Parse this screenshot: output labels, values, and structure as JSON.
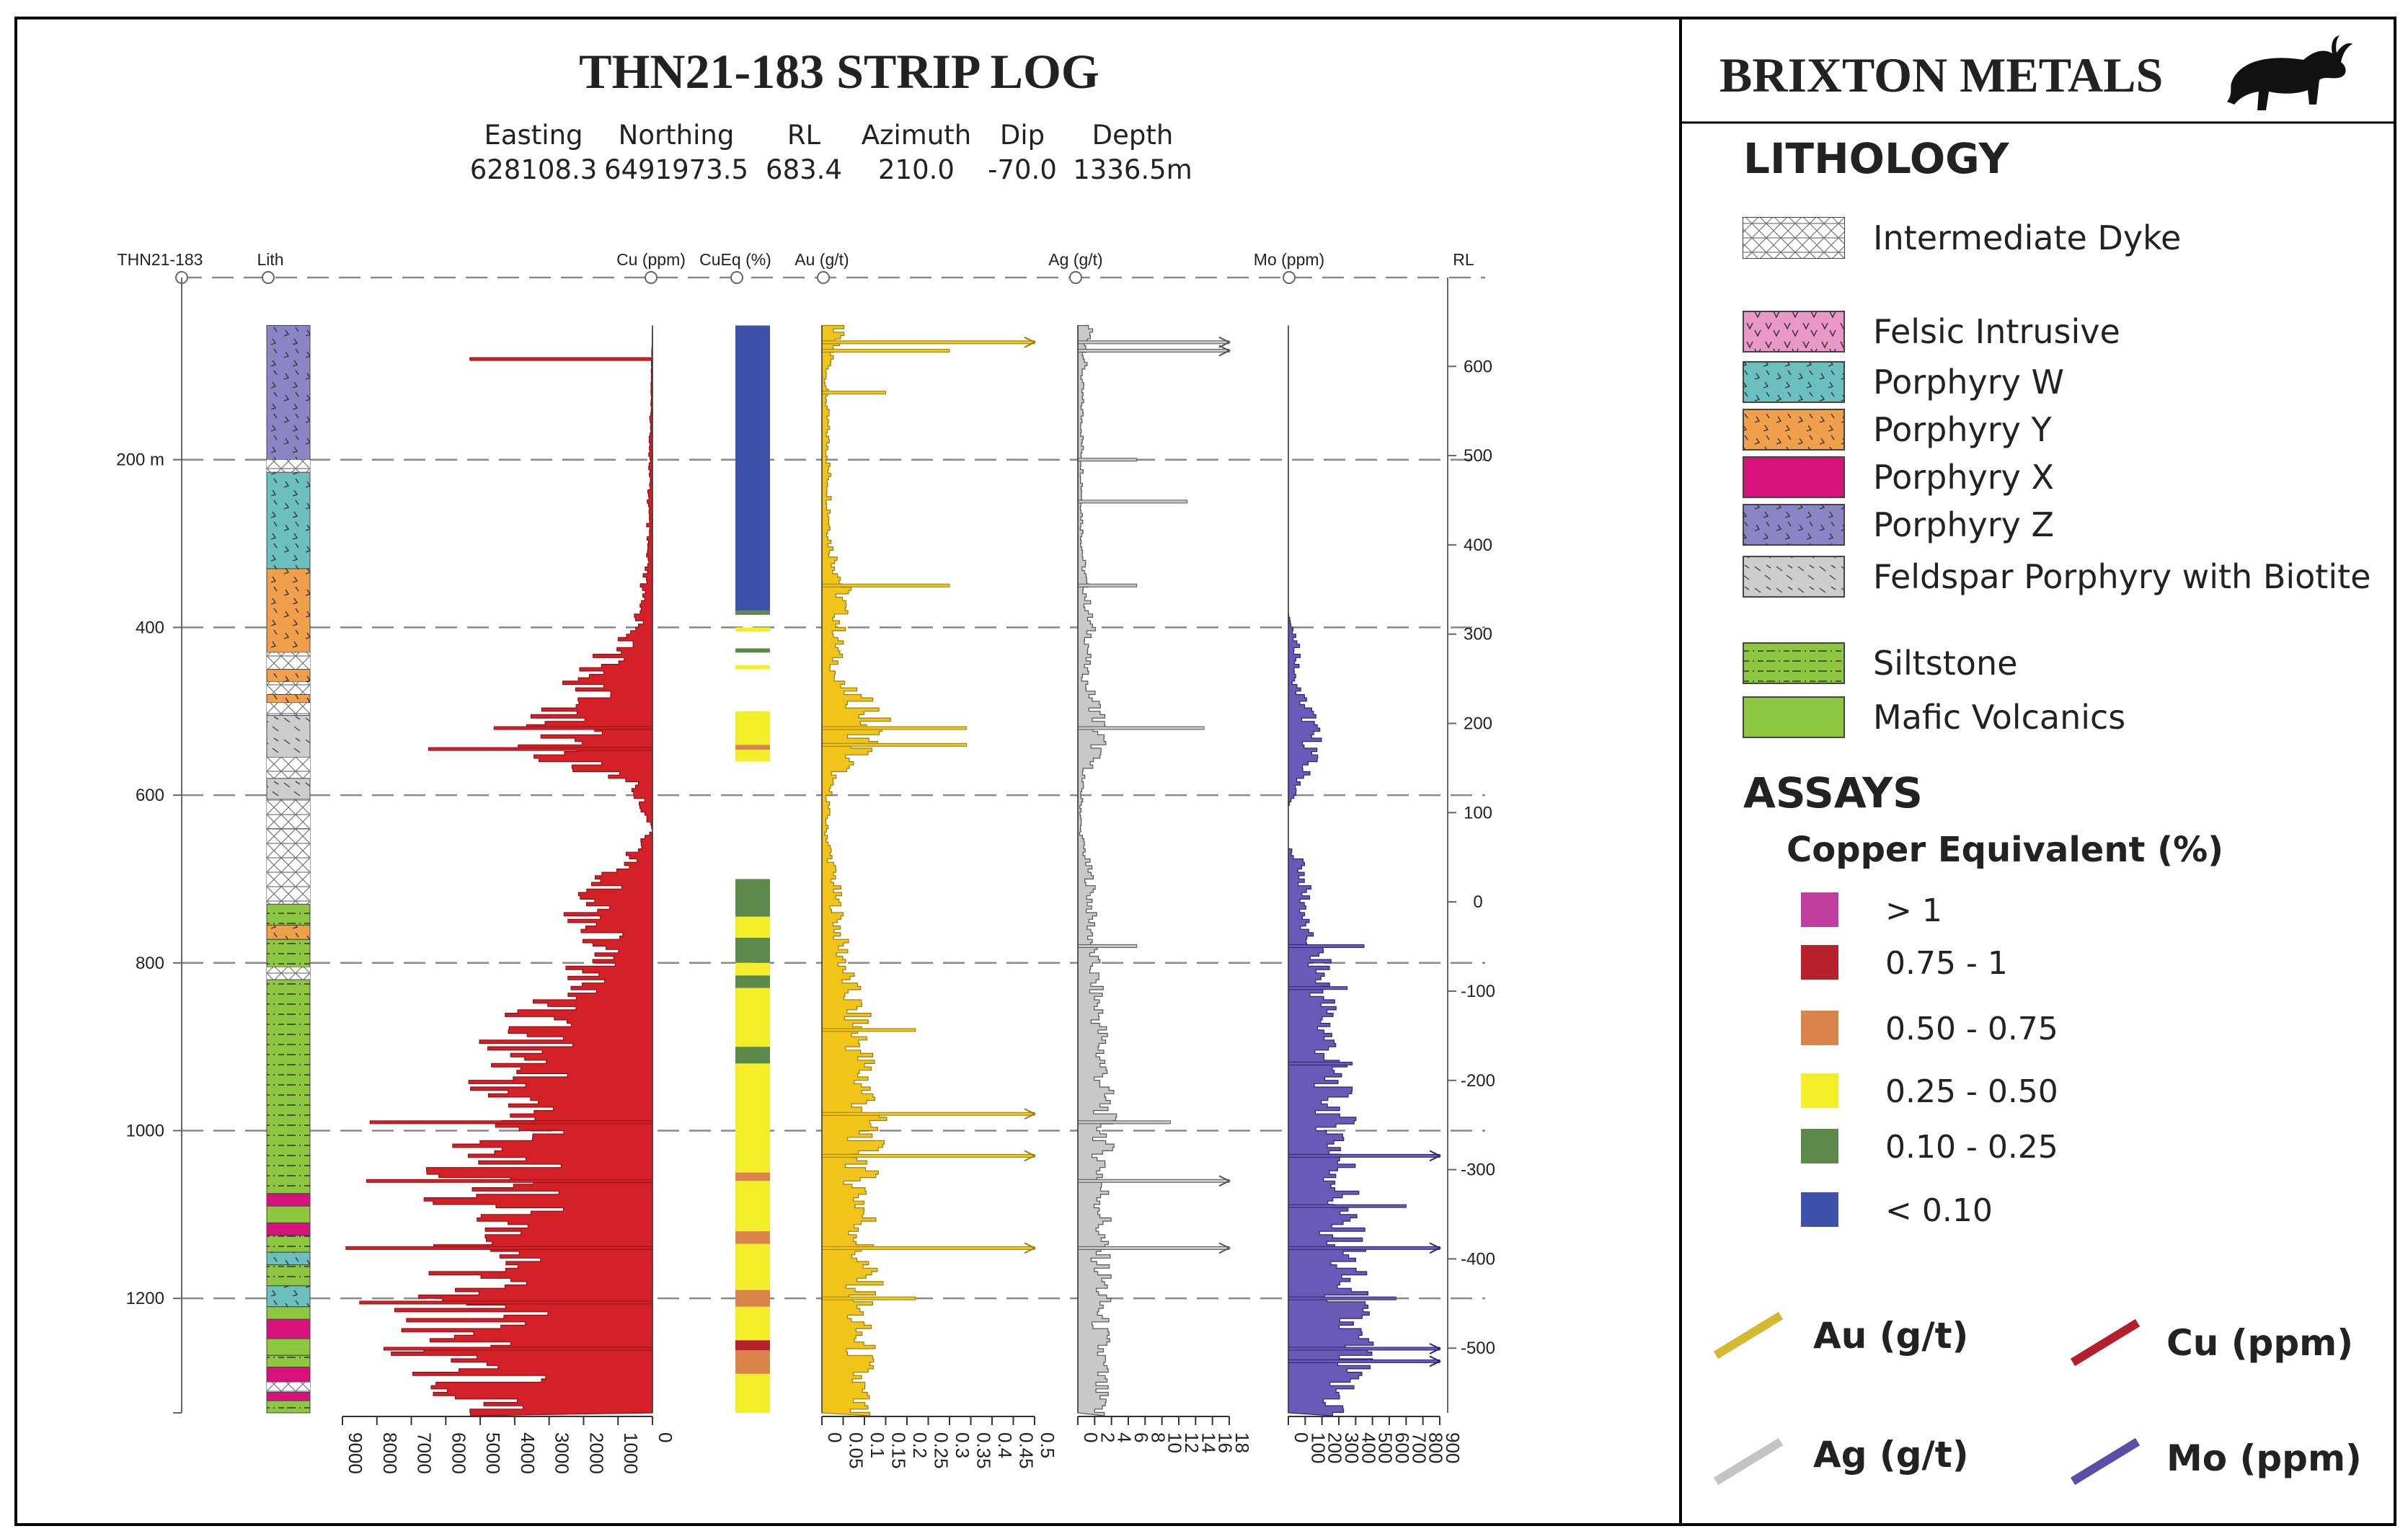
{
  "chart_data": {
    "type": "strip-log",
    "title": "THN21-183 STRIP LOG",
    "hole_id": "THN21-183",
    "collar": {
      "labels": [
        "Easting",
        "Northing",
        "RL",
        "Azimuth",
        "Dip",
        "Depth"
      ],
      "values": [
        "628108.3",
        "6491973.5",
        "683.4",
        "210.0",
        "-70.0",
        "1336.5m"
      ]
    },
    "depth_axis": {
      "range": [
        0,
        1336.5
      ],
      "ticks": [
        {
          "depth": 200,
          "label": "200 m"
        },
        {
          "depth": 400,
          "label": "400"
        },
        {
          "depth": 600,
          "label": "600"
        },
        {
          "depth": 800,
          "label": "800"
        },
        {
          "depth": 1000,
          "label": "1000"
        },
        {
          "depth": 1200,
          "label": "1200"
        }
      ]
    },
    "rl_axis": {
      "label": "RL",
      "ticks": [
        "600",
        "500",
        "400",
        "300",
        "200",
        "100",
        "0",
        "-100",
        "-200",
        "-300",
        "-400",
        "-500"
      ],
      "tick_values": [
        600,
        500,
        400,
        300,
        200,
        100,
        0,
        -100,
        -200,
        -300,
        -400,
        -500
      ]
    },
    "lith_header": "Lith",
    "lithology_intervals": [
      {
        "from": 40,
        "to": 200,
        "unit": "Porphyry Z"
      },
      {
        "from": 200,
        "to": 215,
        "unit": "Intermediate Dyke"
      },
      {
        "from": 215,
        "to": 330,
        "unit": "Porphyry W"
      },
      {
        "from": 330,
        "to": 430,
        "unit": "Porphyry Y"
      },
      {
        "from": 430,
        "to": 450,
        "unit": "Intermediate Dyke"
      },
      {
        "from": 450,
        "to": 465,
        "unit": "Porphyry Y"
      },
      {
        "from": 465,
        "to": 480,
        "unit": "Intermediate Dyke"
      },
      {
        "from": 480,
        "to": 490,
        "unit": "Porphyry Y"
      },
      {
        "from": 490,
        "to": 505,
        "unit": "Intermediate Dyke"
      },
      {
        "from": 505,
        "to": 555,
        "unit": "Feldspar Porphyry with Biotite"
      },
      {
        "from": 555,
        "to": 580,
        "unit": "Intermediate Dyke"
      },
      {
        "from": 580,
        "to": 605,
        "unit": "Feldspar Porphyry with Biotite"
      },
      {
        "from": 605,
        "to": 640,
        "unit": "Intermediate Dyke"
      },
      {
        "from": 640,
        "to": 730,
        "unit": "Intermediate Dyke"
      },
      {
        "from": 730,
        "to": 755,
        "unit": "Siltstone"
      },
      {
        "from": 755,
        "to": 772,
        "unit": "Porphyry Y"
      },
      {
        "from": 772,
        "to": 805,
        "unit": "Siltstone"
      },
      {
        "from": 805,
        "to": 820,
        "unit": "Intermediate Dyke"
      },
      {
        "from": 820,
        "to": 1075,
        "unit": "Siltstone"
      },
      {
        "from": 1075,
        "to": 1090,
        "unit": "Porphyry X"
      },
      {
        "from": 1090,
        "to": 1110,
        "unit": "Mafic Volcanics"
      },
      {
        "from": 1110,
        "to": 1125,
        "unit": "Porphyry X"
      },
      {
        "from": 1125,
        "to": 1145,
        "unit": "Siltstone"
      },
      {
        "from": 1145,
        "to": 1160,
        "unit": "Porphyry W"
      },
      {
        "from": 1160,
        "to": 1185,
        "unit": "Siltstone"
      },
      {
        "from": 1185,
        "to": 1210,
        "unit": "Porphyry W"
      },
      {
        "from": 1210,
        "to": 1225,
        "unit": "Mafic Volcanics"
      },
      {
        "from": 1225,
        "to": 1248,
        "unit": "Porphyry X"
      },
      {
        "from": 1248,
        "to": 1268,
        "unit": "Mafic Volcanics"
      },
      {
        "from": 1268,
        "to": 1282,
        "unit": "Siltstone"
      },
      {
        "from": 1282,
        "to": 1300,
        "unit": "Porphyry X"
      },
      {
        "from": 1300,
        "to": 1312,
        "unit": "Intermediate Dyke"
      },
      {
        "from": 1312,
        "to": 1322,
        "unit": "Porphyry X"
      },
      {
        "from": 1322,
        "to": 1336.5,
        "unit": "Siltstone"
      }
    ],
    "cu": {
      "label": "Cu (ppm)",
      "range": [
        0,
        9000
      ],
      "ticks": [
        "0",
        "1000",
        "2000",
        "3000",
        "4000",
        "5000",
        "6000",
        "7000",
        "8000",
        "9000"
      ],
      "tick_values": [
        0,
        1000,
        2000,
        3000,
        4000,
        5000,
        6000,
        7000,
        8000,
        9000
      ],
      "profile": [
        [
          40,
          0
        ],
        [
          200,
          80
        ],
        [
          300,
          150
        ],
        [
          330,
          200
        ],
        [
          360,
          350
        ],
        [
          400,
          400
        ],
        [
          430,
          1200
        ],
        [
          460,
          1800
        ],
        [
          500,
          2400
        ],
        [
          540,
          2800
        ],
        [
          560,
          2600
        ],
        [
          580,
          600
        ],
        [
          640,
          0
        ],
        [
          680,
          800
        ],
        [
          700,
          1500
        ],
        [
          740,
          1800
        ],
        [
          780,
          1400
        ],
        [
          820,
          2000
        ],
        [
          860,
          3000
        ],
        [
          900,
          3600
        ],
        [
          940,
          4100
        ],
        [
          980,
          3700
        ],
        [
          1020,
          4200
        ],
        [
          1060,
          4800
        ],
        [
          1100,
          4500
        ],
        [
          1140,
          5000
        ],
        [
          1180,
          4800
        ],
        [
          1220,
          5300
        ],
        [
          1260,
          5500
        ],
        [
          1300,
          4700
        ],
        [
          1336.5,
          4400
        ]
      ],
      "spikes": [
        [
          80,
          5300
        ],
        [
          520,
          4600
        ],
        [
          545,
          6500
        ],
        [
          990,
          8200
        ],
        [
          1060,
          8300
        ],
        [
          1140,
          8900
        ],
        [
          1205,
          8500
        ],
        [
          1260,
          7800
        ]
      ]
    },
    "cueq": {
      "label": "CuEq (%)",
      "intervals": [
        {
          "from": 40,
          "to": 380,
          "class": "< 0.10"
        },
        {
          "from": 380,
          "to": 385,
          "class": "0.10 - 0.25"
        },
        {
          "from": 400,
          "to": 405,
          "class": "0.25 - 0.50"
        },
        {
          "from": 425,
          "to": 430,
          "class": "0.10 - 0.25"
        },
        {
          "from": 445,
          "to": 450,
          "class": "0.25 - 0.50"
        },
        {
          "from": 500,
          "to": 540,
          "class": "0.25 - 0.50"
        },
        {
          "from": 540,
          "to": 546,
          "class": "0.50 - 0.75"
        },
        {
          "from": 546,
          "to": 560,
          "class": "0.25 - 0.50"
        },
        {
          "from": 700,
          "to": 745,
          "class": "0.10 - 0.25"
        },
        {
          "from": 745,
          "to": 770,
          "class": "0.25 - 0.50"
        },
        {
          "from": 770,
          "to": 800,
          "class": "0.10 - 0.25"
        },
        {
          "from": 800,
          "to": 815,
          "class": "0.25 - 0.50"
        },
        {
          "from": 815,
          "to": 830,
          "class": "0.10 - 0.25"
        },
        {
          "from": 830,
          "to": 900,
          "class": "0.25 - 0.50"
        },
        {
          "from": 900,
          "to": 920,
          "class": "0.10 - 0.25"
        },
        {
          "from": 920,
          "to": 1050,
          "class": "0.25 - 0.50"
        },
        {
          "from": 1050,
          "to": 1060,
          "class": "0.50 - 0.75"
        },
        {
          "from": 1060,
          "to": 1120,
          "class": "0.25 - 0.50"
        },
        {
          "from": 1120,
          "to": 1135,
          "class": "0.50 - 0.75"
        },
        {
          "from": 1135,
          "to": 1190,
          "class": "0.25 - 0.50"
        },
        {
          "from": 1190,
          "to": 1210,
          "class": "0.50 - 0.75"
        },
        {
          "from": 1210,
          "to": 1250,
          "class": "0.25 - 0.50"
        },
        {
          "from": 1250,
          "to": 1262,
          "class": "0.75 - 1"
        },
        {
          "from": 1262,
          "to": 1290,
          "class": "0.50 - 0.75"
        },
        {
          "from": 1290,
          "to": 1336.5,
          "class": "0.25 - 0.50"
        }
      ]
    },
    "au": {
      "label": "Au (g/t)",
      "range": [
        0,
        0.5
      ],
      "ticks": [
        "0",
        "0.05",
        "0.1",
        "0.15",
        "0.2",
        "0.25",
        "0.3",
        "0.35",
        "0.4",
        "0.45",
        "0.5"
      ],
      "tick_values": [
        0,
        0.05,
        0.1,
        0.15,
        0.2,
        0.25,
        0.3,
        0.35,
        0.4,
        0.45,
        0.5
      ],
      "profile": [
        [
          40,
          0.04
        ],
        [
          100,
          0.01
        ],
        [
          300,
          0.02
        ],
        [
          350,
          0.05
        ],
        [
          400,
          0.04
        ],
        [
          460,
          0.03
        ],
        [
          500,
          0.12
        ],
        [
          540,
          0.1
        ],
        [
          580,
          0.02
        ],
        [
          640,
          0.01
        ],
        [
          700,
          0.03
        ],
        [
          760,
          0.04
        ],
        [
          820,
          0.06
        ],
        [
          860,
          0.08
        ],
        [
          900,
          0.09
        ],
        [
          940,
          0.1
        ],
        [
          980,
          0.11
        ],
        [
          1020,
          0.1
        ],
        [
          1060,
          0.09
        ],
        [
          1100,
          0.1
        ],
        [
          1140,
          0.09
        ],
        [
          1180,
          0.1
        ],
        [
          1220,
          0.08
        ],
        [
          1260,
          0.09
        ],
        [
          1336.5,
          0.08
        ]
      ],
      "spikes": [
        [
          60,
          0.5
        ],
        [
          70,
          0.3
        ],
        [
          120,
          0.15
        ],
        [
          350,
          0.3
        ],
        [
          520,
          0.34
        ],
        [
          540,
          0.34
        ],
        [
          880,
          0.22
        ],
        [
          980,
          0.5
        ],
        [
          1030,
          0.5
        ],
        [
          1140,
          0.5
        ],
        [
          1200,
          0.22
        ]
      ]
    },
    "ag": {
      "label": "Ag (g/t)",
      "range": [
        0,
        18
      ],
      "ticks": [
        "0",
        "2",
        "4",
        "6",
        "8",
        "10",
        "12",
        "14",
        "16",
        "18"
      ],
      "tick_values": [
        0,
        2,
        4,
        6,
        8,
        10,
        12,
        14,
        16,
        18
      ],
      "profile": [
        [
          40,
          1.5
        ],
        [
          100,
          0.5
        ],
        [
          300,
          0.5
        ],
        [
          360,
          1
        ],
        [
          400,
          1.5
        ],
        [
          460,
          0.8
        ],
        [
          500,
          2.5
        ],
        [
          540,
          2.5
        ],
        [
          580,
          0.5
        ],
        [
          640,
          0.3
        ],
        [
          700,
          1.5
        ],
        [
          760,
          1.6
        ],
        [
          820,
          2
        ],
        [
          860,
          2.5
        ],
        [
          900,
          2.8
        ],
        [
          940,
          3
        ],
        [
          980,
          3.2
        ],
        [
          1020,
          3
        ],
        [
          1060,
          2.8
        ],
        [
          1100,
          3
        ],
        [
          1140,
          2.6
        ],
        [
          1180,
          3
        ],
        [
          1220,
          2.6
        ],
        [
          1260,
          2.8
        ],
        [
          1336.5,
          2.4
        ]
      ],
      "spikes": [
        [
          60,
          18
        ],
        [
          70,
          18
        ],
        [
          200,
          7
        ],
        [
          250,
          13
        ],
        [
          350,
          7
        ],
        [
          520,
          15
        ],
        [
          780,
          7
        ],
        [
          990,
          11
        ],
        [
          1060,
          18
        ],
        [
          1140,
          18
        ]
      ]
    },
    "mo": {
      "label": "Mo (ppm)",
      "range": [
        0,
        900
      ],
      "ticks": [
        "0",
        "100",
        "200",
        "300",
        "400",
        "500",
        "600",
        "700",
        "800",
        "900"
      ],
      "tick_values": [
        0,
        100,
        200,
        300,
        400,
        500,
        600,
        700,
        800,
        900
      ],
      "profile": [
        [
          40,
          0
        ],
        [
          380,
          0
        ],
        [
          400,
          20
        ],
        [
          430,
          60
        ],
        [
          460,
          30
        ],
        [
          500,
          120
        ],
        [
          540,
          150
        ],
        [
          580,
          80
        ],
        [
          610,
          0
        ],
        [
          660,
          0
        ],
        [
          680,
          80
        ],
        [
          720,
          100
        ],
        [
          760,
          90
        ],
        [
          780,
          160
        ],
        [
          820,
          200
        ],
        [
          860,
          220
        ],
        [
          900,
          240
        ],
        [
          940,
          260
        ],
        [
          980,
          280
        ],
        [
          1020,
          300
        ],
        [
          1060,
          320
        ],
        [
          1100,
          300
        ],
        [
          1140,
          340
        ],
        [
          1180,
          330
        ],
        [
          1220,
          350
        ],
        [
          1260,
          380
        ],
        [
          1300,
          300
        ],
        [
          1336.5,
          280
        ]
      ],
      "spikes": [
        [
          780,
          450
        ],
        [
          830,
          350
        ],
        [
          920,
          380
        ],
        [
          1030,
          900
        ],
        [
          1090,
          700
        ],
        [
          1140,
          900
        ],
        [
          1200,
          640
        ],
        [
          1260,
          900
        ],
        [
          1275,
          900
        ]
      ]
    },
    "track_labels": {
      "hole": "THN21-183",
      "lith": "Lith",
      "cu": "Cu (ppm)",
      "cueq": "CuEq (%)",
      "au": "Au (g/t)",
      "ag": "Ag (g/t)",
      "mo": "Mo (ppm)",
      "rl": "RL"
    }
  },
  "legend": {
    "company": "BRIXTON METALS",
    "lithology_title": "LITHOLOGY",
    "lithology_items": [
      {
        "label": "Intermediate Dyke",
        "color": "#ffffff",
        "pattern": "crosshatch"
      },
      {
        "label": "Felsic Intrusive",
        "color": "#e897c7",
        "pattern": "v"
      },
      {
        "label": "Porphyry W",
        "color": "#6bbfbf",
        "pattern": "tick"
      },
      {
        "label": "Porphyry Y",
        "color": "#f0a04b",
        "pattern": "tick"
      },
      {
        "label": "Porphyry X",
        "color": "#d8127d",
        "pattern": "plain"
      },
      {
        "label": "Porphyry Z",
        "color": "#8a85c4",
        "pattern": "tick"
      },
      {
        "label": "Feldspar Porphyry with Biotite",
        "color": "#cdcdcd",
        "pattern": "dash"
      },
      {
        "label": "Siltstone",
        "color": "#8dc63f",
        "pattern": "dashdot"
      },
      {
        "label": "Mafic Volcanics",
        "color": "#8dc63f",
        "pattern": "plain"
      }
    ],
    "assays_title": "ASSAYS",
    "cueq_title": "Copper Equivalent (%)",
    "cueq_classes": [
      {
        "label": "> 1",
        "color": "#bf3e9e"
      },
      {
        "label": "0.75 - 1",
        "color": "#b8202b"
      },
      {
        "label": "0.50 - 0.75",
        "color": "#d9844b"
      },
      {
        "label": "0.25 - 0.50",
        "color": "#f4ee2a"
      },
      {
        "label": "0.10 - 0.25",
        "color": "#5d8a4a"
      },
      {
        "label": "< 0.10",
        "color": "#3f51a8"
      }
    ],
    "series_keys": [
      {
        "label": "Au (g/t)",
        "color": "#d4b830"
      },
      {
        "label": "Cu (ppm)",
        "color": "#b3202a"
      },
      {
        "label": "Ag (g/t)",
        "color": "#c4c4c4"
      },
      {
        "label": "Mo (ppm)",
        "color": "#5a4fa8"
      }
    ]
  },
  "colors": {
    "cu_fill": "#d42027",
    "au_fill": "#f0c419",
    "ag_fill": "#c8c8c8",
    "mo_fill": "#6a5ab8",
    "grid": "#888888",
    "frame": "#000000"
  }
}
